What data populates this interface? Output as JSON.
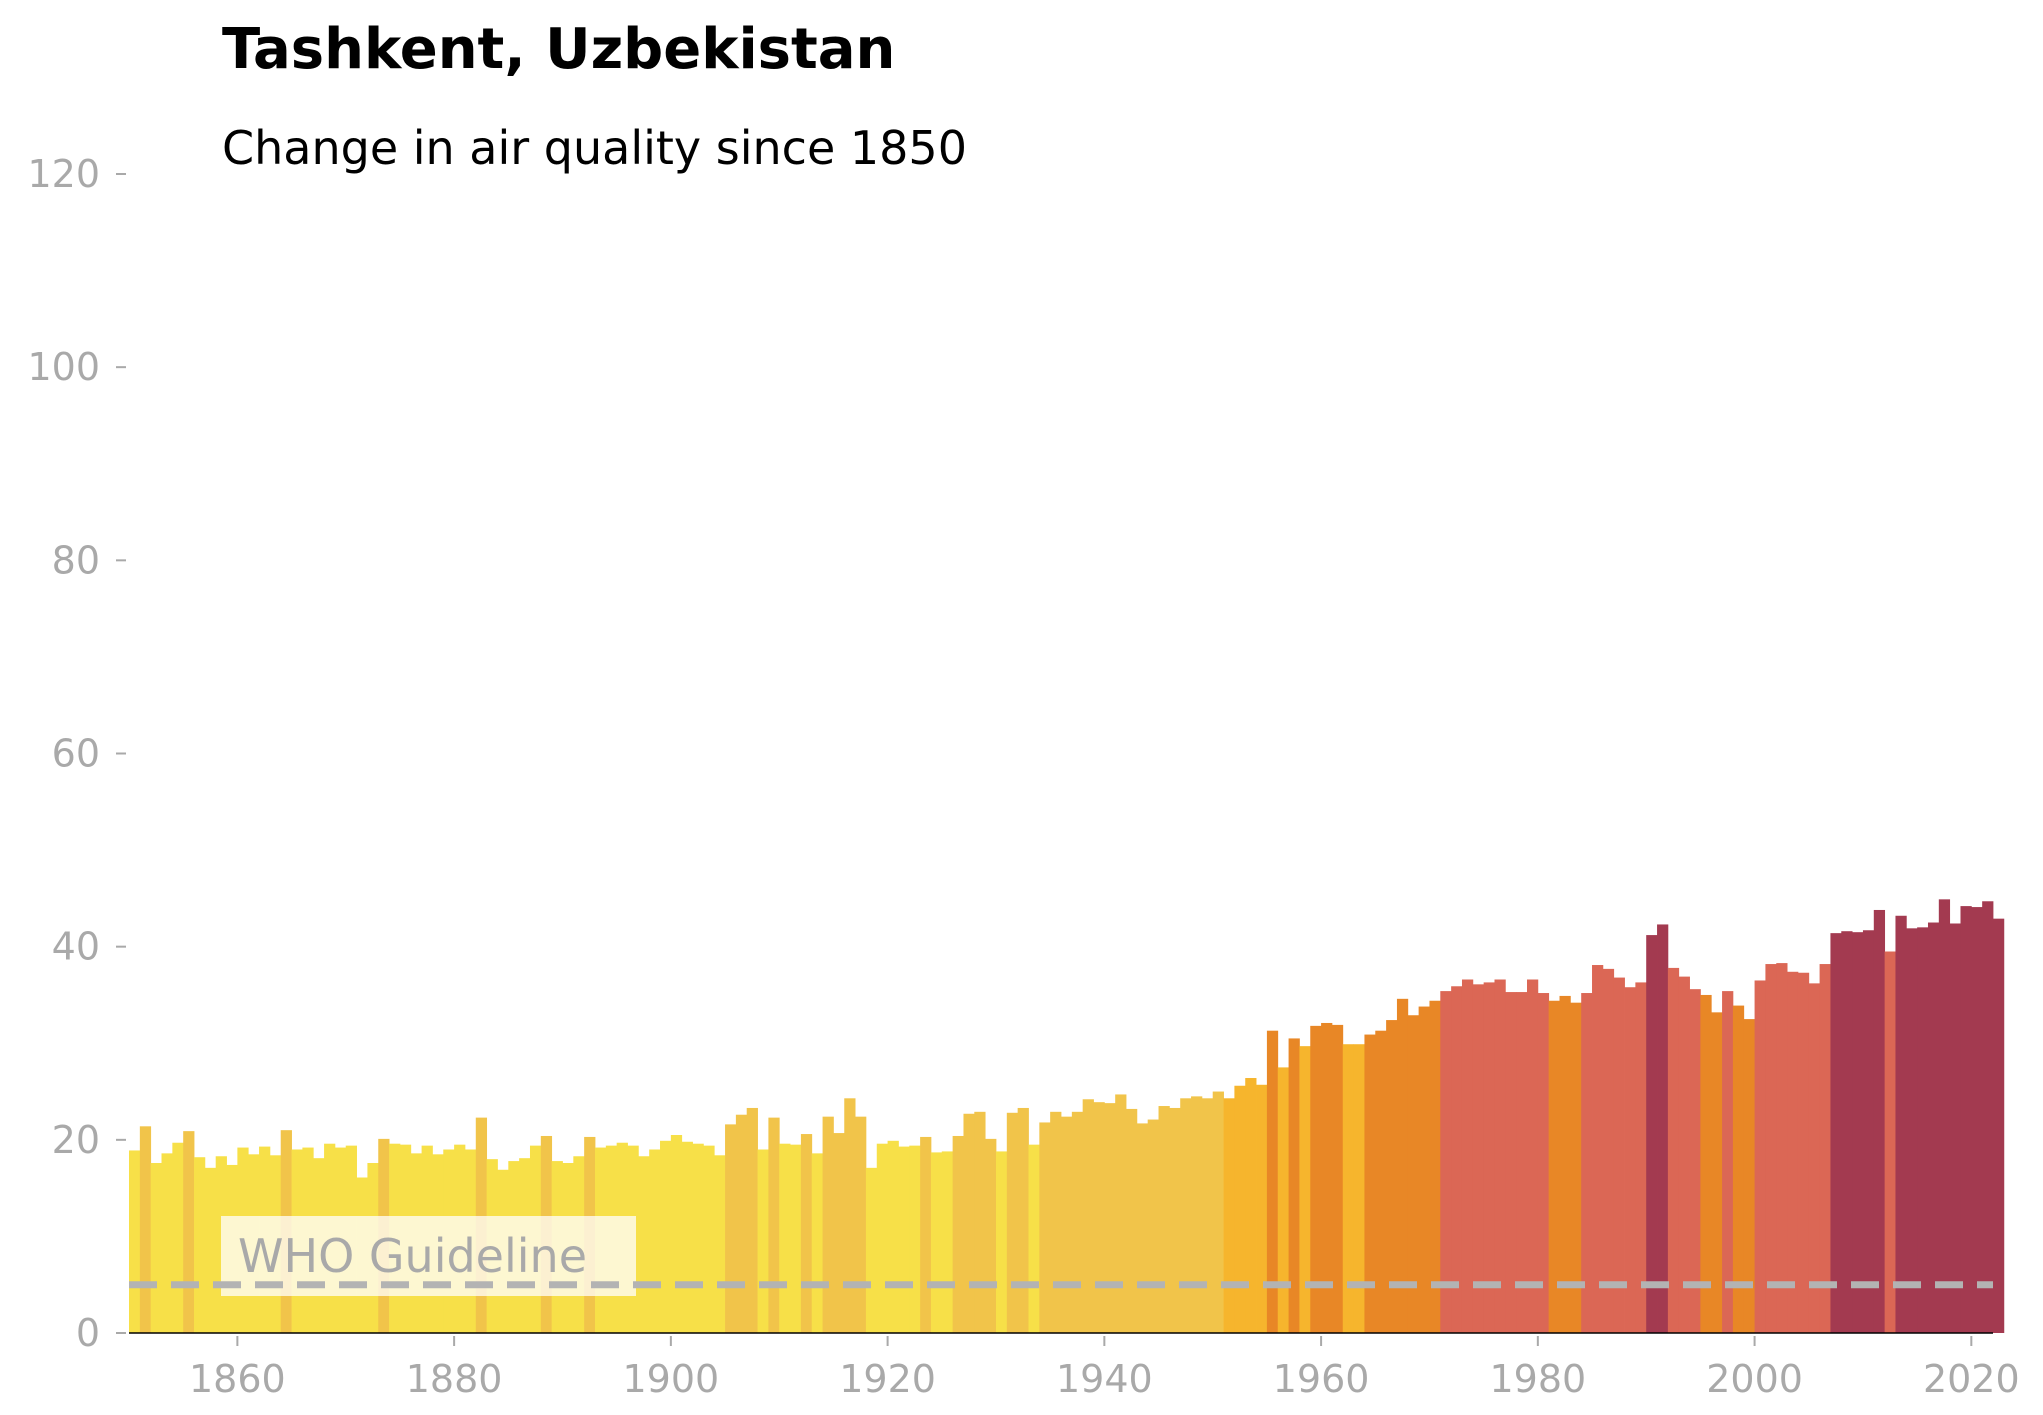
{
  "chart_data": {
    "type": "bar",
    "title": "Tashkent, Uzbekistan",
    "subtitle": "Change in air quality since 1850",
    "xlabel": "",
    "ylabel": "",
    "xlim": [
      1850,
      2022
    ],
    "ylim": [
      0,
      120
    ],
    "x_ticks": [
      "1860",
      "1880",
      "1900",
      "1920",
      "1940",
      "1960",
      "1980",
      "2000",
      "2020"
    ],
    "y_ticks": [
      "0",
      "20",
      "40",
      "60",
      "80",
      "100",
      "120"
    ],
    "grid": false,
    "guideline": {
      "label": "WHO Guideline",
      "value": 5
    },
    "colors": {
      "bar_levels": [
        "#f7e048",
        "#f1c44a",
        "#f6b52d",
        "#e88726",
        "#db6755",
        "#a33a50"
      ],
      "guideline": "#b3b3b3"
    },
    "start_year": 1850,
    "values": [
      18.9,
      21.4,
      17.6,
      18.6,
      19.7,
      20.9,
      18.2,
      17.1,
      18.3,
      17.4,
      19.2,
      18.5,
      19.3,
      18.4,
      21.0,
      19.0,
      19.2,
      18.1,
      19.6,
      19.2,
      19.4,
      16.1,
      17.6,
      20.1,
      19.6,
      19.5,
      18.6,
      19.4,
      18.5,
      19.0,
      19.5,
      19.0,
      22.3,
      18.0,
      16.9,
      17.8,
      18.1,
      19.4,
      20.4,
      17.8,
      17.6,
      18.3,
      20.3,
      19.2,
      19.4,
      19.7,
      19.4,
      18.3,
      19.0,
      19.9,
      20.5,
      19.8,
      19.6,
      19.4,
      18.4,
      21.6,
      22.6,
      23.3,
      19.0,
      22.3,
      19.6,
      19.5,
      20.6,
      18.6,
      22.4,
      20.7,
      24.3,
      22.4,
      17.1,
      19.6,
      19.9,
      19.3,
      19.4,
      20.3,
      18.7,
      18.8,
      20.4,
      22.7,
      22.9,
      20.1,
      18.8,
      22.8,
      23.3,
      19.5,
      21.8,
      22.9,
      22.4,
      22.9,
      24.2,
      23.9,
      23.8,
      24.7,
      23.2,
      21.7,
      22.1,
      23.5,
      23.3,
      24.3,
      24.5,
      24.3,
      25.0,
      24.3,
      25.6,
      26.4,
      25.7,
      31.3,
      27.5,
      30.5,
      29.7,
      31.8,
      32.1,
      31.9,
      29.9,
      29.9,
      30.9,
      31.3,
      32.4,
      34.6,
      32.9,
      33.8,
      34.4,
      35.4,
      35.9,
      36.6,
      36.1,
      36.3,
      36.6,
      35.3,
      35.3,
      36.6,
      35.2,
      34.4,
      34.9,
      34.2,
      35.2,
      38.1,
      37.7,
      36.8,
      35.8,
      36.3,
      41.2,
      42.3,
      37.8,
      36.9,
      35.6,
      35.0,
      33.2,
      35.4,
      33.9,
      32.5,
      36.5,
      38.2,
      38.3,
      37.4,
      37.3,
      36.2,
      38.2,
      41.4,
      41.6,
      41.5,
      41.7,
      43.8,
      39.5,
      43.2,
      41.9,
      42.0,
      42.5,
      44.9,
      42.4,
      44.2,
      44.1,
      44.7,
      42.9
    ],
    "levels": [
      0,
      1,
      0,
      0,
      0,
      1,
      0,
      0,
      0,
      0,
      0,
      0,
      0,
      0,
      1,
      0,
      0,
      0,
      0,
      0,
      0,
      0,
      0,
      1,
      0,
      0,
      0,
      0,
      0,
      0,
      0,
      0,
      1,
      0,
      0,
      0,
      0,
      0,
      1,
      0,
      0,
      0,
      1,
      0,
      0,
      0,
      0,
      0,
      0,
      0,
      0,
      0,
      0,
      0,
      0,
      1,
      1,
      1,
      0,
      1,
      0,
      0,
      1,
      0,
      1,
      1,
      1,
      1,
      0,
      0,
      0,
      0,
      0,
      1,
      0,
      0,
      1,
      1,
      1,
      1,
      0,
      1,
      1,
      0,
      1,
      1,
      1,
      1,
      1,
      1,
      1,
      1,
      1,
      1,
      1,
      1,
      1,
      1,
      1,
      1,
      1,
      2,
      2,
      2,
      2,
      3,
      2,
      3,
      2,
      3,
      3,
      3,
      2,
      2,
      3,
      3,
      3,
      3,
      3,
      3,
      3,
      4,
      4,
      4,
      4,
      4,
      4,
      4,
      4,
      4,
      4,
      3,
      3,
      3,
      4,
      4,
      4,
      4,
      4,
      4,
      5,
      5,
      4,
      4,
      4,
      3,
      3,
      4,
      3,
      3,
      4,
      4,
      4,
      4,
      4,
      4,
      4,
      5,
      5,
      5,
      5,
      5,
      4,
      5,
      5,
      5,
      5,
      5,
      5,
      5,
      5,
      5,
      5
    ]
  }
}
